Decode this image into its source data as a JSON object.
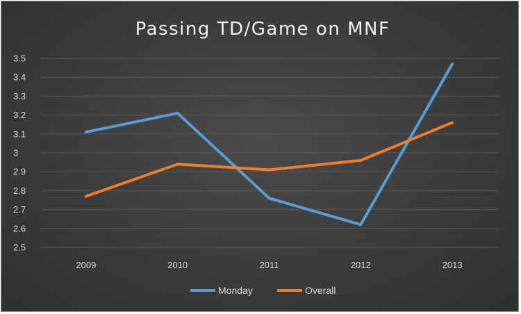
{
  "chart_data": {
    "type": "line",
    "title": "Passing TD/Game on MNF",
    "categories": [
      "2009",
      "2010",
      "2011",
      "2012",
      "2013"
    ],
    "series": [
      {
        "name": "Monday",
        "color": "#5b9bd5",
        "values": [
          3.11,
          3.21,
          2.76,
          2.62,
          3.47
        ]
      },
      {
        "name": "Overall",
        "color": "#ed7d31",
        "values": [
          2.77,
          2.94,
          2.91,
          2.96,
          3.16
        ]
      }
    ],
    "ylim": [
      2.5,
      3.5
    ],
    "yticks": [
      "2.5",
      "2.6",
      "2.7",
      "2.8",
      "2.9",
      "3",
      "3.1",
      "3.2",
      "3.3",
      "3.4",
      "3.5"
    ],
    "grid": true,
    "legend": "bottom",
    "background": "#3b3b3b"
  }
}
